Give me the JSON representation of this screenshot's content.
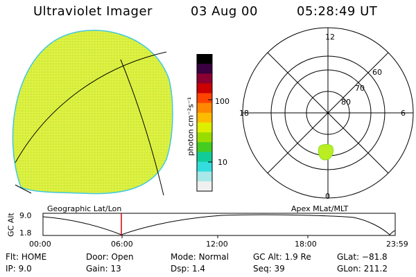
{
  "header": {
    "title": "Ultraviolet Imager",
    "date": "03 Aug 00",
    "time": "05:28:49 UT"
  },
  "colorbar": {
    "label": "photon cm⁻²s⁻¹",
    "ticks": [
      "100",
      "10"
    ],
    "colors": [
      "#000000",
      "#3a0040",
      "#8b0030",
      "#cc0000",
      "#ff4400",
      "#ff8800",
      "#ffbb00",
      "#ddee00",
      "#99dd00",
      "#44cc22",
      "#11cc99",
      "#33dddd",
      "#a8e8e8",
      "#f0f0f0"
    ]
  },
  "polar_plot": {
    "mlt_labels": {
      "top": "12",
      "left": "18",
      "right": "6",
      "bottom": "0"
    },
    "lat_labels": [
      "60",
      "70",
      "80"
    ]
  },
  "image_colors": {
    "fill": "#ddf040",
    "edge": "#40c8e0",
    "blob": "#bbee22"
  },
  "altitude_plot": {
    "ylabel": "GC Alt",
    "yticks": [
      "9.0",
      "1.8"
    ],
    "left_title": "Geographic Lat/Lon",
    "right_title": "Apex MLat/MLT",
    "xticks": [
      "00:00",
      "06:00",
      "12:00",
      "18:00",
      "23:59"
    ],
    "marker_color": "#cc0000"
  },
  "info": {
    "row1": [
      {
        "label": "Flt:",
        "value": "HOME"
      },
      {
        "label": "Door:",
        "value": "Open"
      },
      {
        "label": "Mode:",
        "value": "Normal"
      },
      {
        "label": "GC Alt:",
        "value": "1.9 Re"
      },
      {
        "label": "GLat:",
        "value": "−81.8"
      }
    ],
    "row2": [
      {
        "label": "IP:",
        "value": "9.0"
      },
      {
        "label": "Gain:",
        "value": "13"
      },
      {
        "label": "Dsp:",
        "value": "1.4"
      },
      {
        "label": "Seq:",
        "value": "39"
      },
      {
        "label": "GLon:",
        "value": "211.2"
      }
    ]
  }
}
